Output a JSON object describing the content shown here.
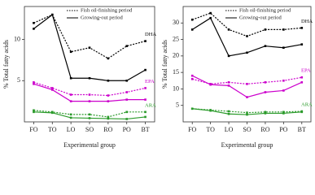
{
  "chart_data": [
    {
      "type": "line",
      "xlabel": "Experimental group",
      "ylabel": "% Total fatty acids",
      "categories": [
        "FO",
        "TO",
        "LO",
        "SO",
        "RO",
        "PO",
        "BT"
      ],
      "ylim": [
        0,
        14
      ],
      "yticks": [
        5,
        10
      ],
      "legend": [
        "Fish oil-finishing period",
        "Growing-out period"
      ],
      "groups": [
        {
          "label": "DHA",
          "color": "#000000",
          "finishing": [
            12,
            13,
            8.5,
            9,
            7.7,
            9.2,
            9.8
          ],
          "growing": [
            11.3,
            13,
            5.3,
            5.3,
            5,
            5,
            6.3
          ]
        },
        {
          "label": "EPA",
          "color": "#cc00cc",
          "finishing": [
            4.8,
            4.1,
            3.3,
            3.3,
            3.2,
            3.6,
            4.1
          ],
          "growing": [
            4.6,
            3.9,
            2.5,
            2.5,
            2.5,
            2.7,
            2.7
          ]
        },
        {
          "label": "ARA",
          "color": "#2a9a2a",
          "finishing": [
            1.4,
            1.2,
            0.9,
            0.9,
            0.6,
            1.2,
            1.2
          ],
          "growing": [
            1.2,
            1.1,
            0.5,
            0.45,
            0.4,
            0.35,
            0.6
          ]
        }
      ]
    },
    {
      "type": "line",
      "xlabel": "Experimental group",
      "ylabel": "% Total fatty acids",
      "categories": [
        "FO",
        "TO",
        "LO",
        "SO",
        "RO",
        "PO",
        "BT"
      ],
      "ylim": [
        0,
        35
      ],
      "yticks": [
        5,
        10,
        15,
        20,
        25,
        30
      ],
      "legend": [
        "Fish oil-finishing period",
        "Growing-out period"
      ],
      "groups": [
        {
          "label": "DHA",
          "color": "#000000",
          "finishing": [
            31,
            33,
            28,
            26,
            28,
            28,
            28.5
          ],
          "growing": [
            28,
            31.5,
            20,
            21,
            23,
            22.5,
            23.5
          ]
        },
        {
          "label": "EPA",
          "color": "#cc00cc",
          "finishing": [
            13,
            11.5,
            12,
            11.5,
            12,
            12.5,
            13.5
          ],
          "growing": [
            14,
            11.3,
            11,
            7.5,
            9,
            9.5,
            12
          ]
        },
        {
          "label": "ARA",
          "color": "#2a9a2a",
          "finishing": [
            4,
            3.6,
            3.2,
            2.8,
            3,
            3,
            3.2
          ],
          "growing": [
            4,
            3.4,
            2.4,
            2.2,
            2.6,
            2.6,
            3
          ]
        }
      ]
    }
  ]
}
